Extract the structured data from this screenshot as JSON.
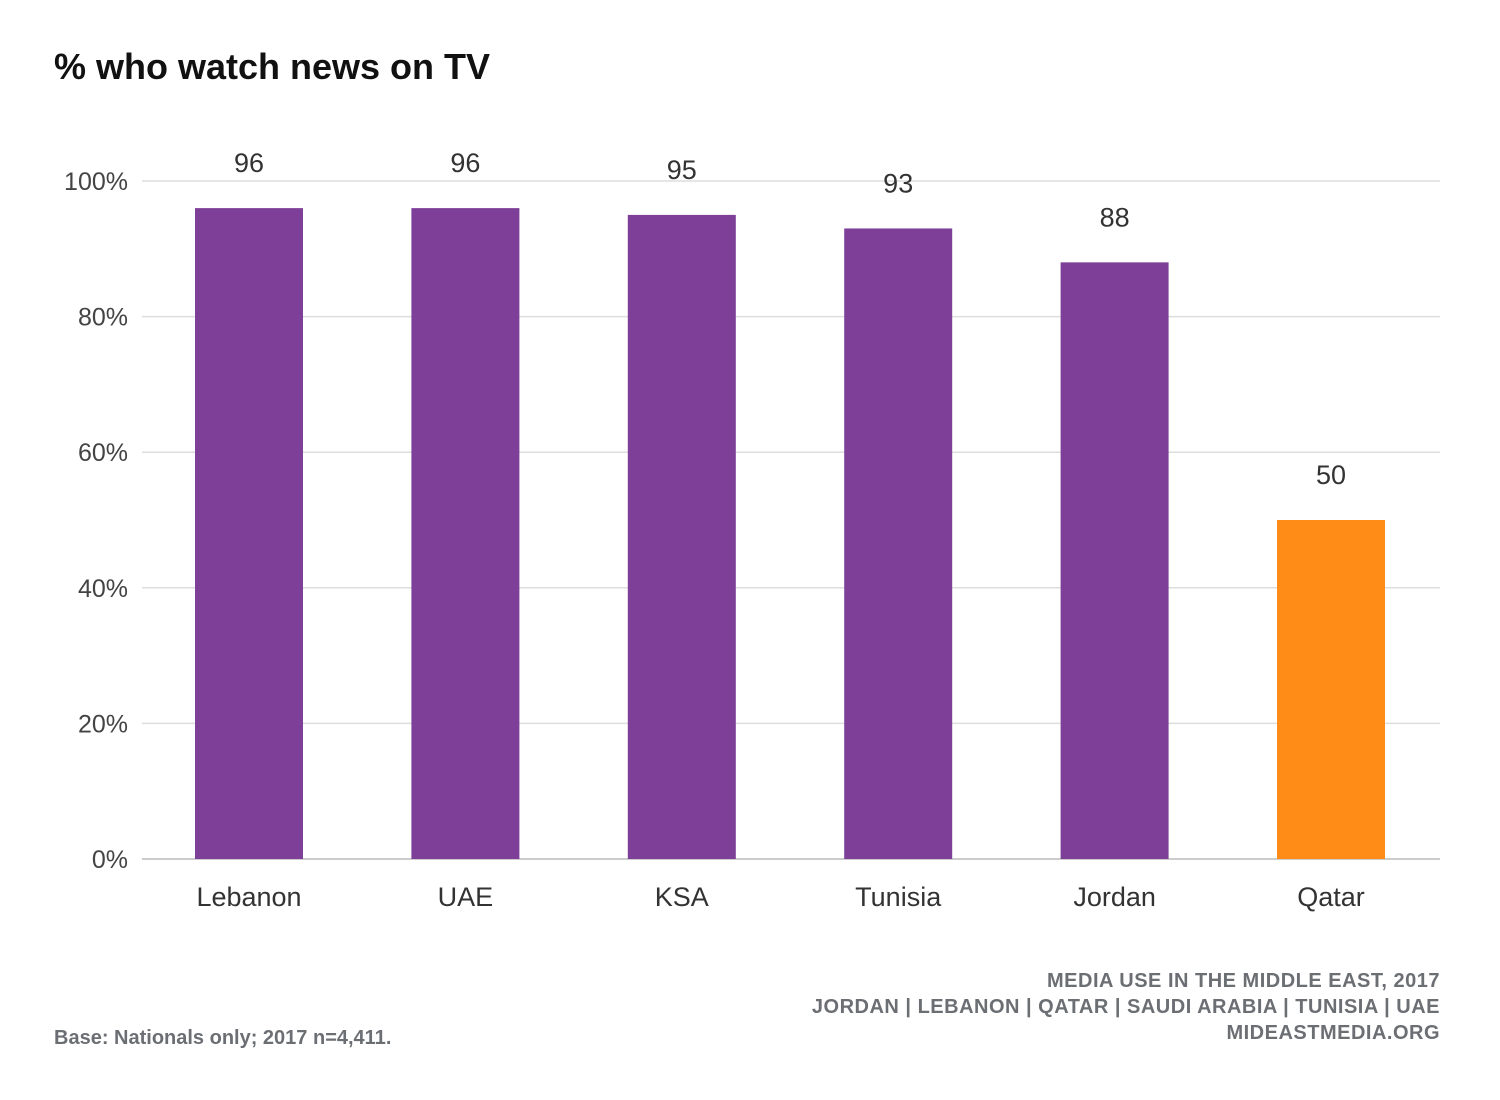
{
  "chart_data": {
    "type": "bar",
    "title": "% who watch news on TV",
    "xlabel": "",
    "ylabel": "",
    "categories": [
      "Lebanon",
      "UAE",
      "KSA",
      "Tunisia",
      "Jordan",
      "Qatar"
    ],
    "values": [
      96,
      96,
      95,
      93,
      88,
      50
    ],
    "data_labels": [
      "96",
      "96",
      "95",
      "93",
      "88",
      "50"
    ],
    "colors": [
      "#7d3f98",
      "#7d3f98",
      "#7d3f98",
      "#7d3f98",
      "#7d3f98",
      "#ff8c17"
    ],
    "ylim": [
      0,
      100
    ],
    "yticks": [
      0,
      20,
      40,
      60,
      80,
      100
    ],
    "ytick_labels": [
      "0%",
      "20%",
      "40%",
      "60%",
      "80%",
      "100%"
    ],
    "grid": true,
    "legend": "none"
  },
  "footer": {
    "source_lines": [
      "MEDIA USE IN THE MIDDLE EAST, 2017",
      "JORDAN | LEBANON | QATAR | SAUDI ARABIA | TUNISIA | UAE",
      "MIDEASTMEDIA.ORG"
    ],
    "base_note": "Base: Nationals only; 2017 n=4,411."
  }
}
